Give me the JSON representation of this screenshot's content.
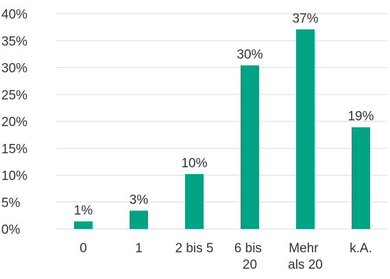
{
  "chart_data": {
    "type": "bar",
    "categories": [
      "0",
      "1",
      "2 bis 5",
      "6 bis 20",
      "Mehr als 20",
      "k.A."
    ],
    "values": [
      1.4,
      3.4,
      10.2,
      30.4,
      37.1,
      18.9
    ],
    "value_labels": [
      "1%",
      "3%",
      "10%",
      "30%",
      "37%",
      "19%"
    ],
    "color": "#00a383",
    "ylim": [
      0,
      40
    ],
    "yticks": [
      {
        "value": 0,
        "label": "0%"
      },
      {
        "value": 5,
        "label": "5%"
      },
      {
        "value": 10,
        "label": "10%"
      },
      {
        "value": 15,
        "label": "15%"
      },
      {
        "value": 20,
        "label": "20%"
      },
      {
        "value": 25,
        "label": "25%"
      },
      {
        "value": 30,
        "label": "30%"
      },
      {
        "value": 35,
        "label": "35%"
      },
      {
        "value": 40,
        "label": "40%"
      }
    ],
    "grid": true
  }
}
